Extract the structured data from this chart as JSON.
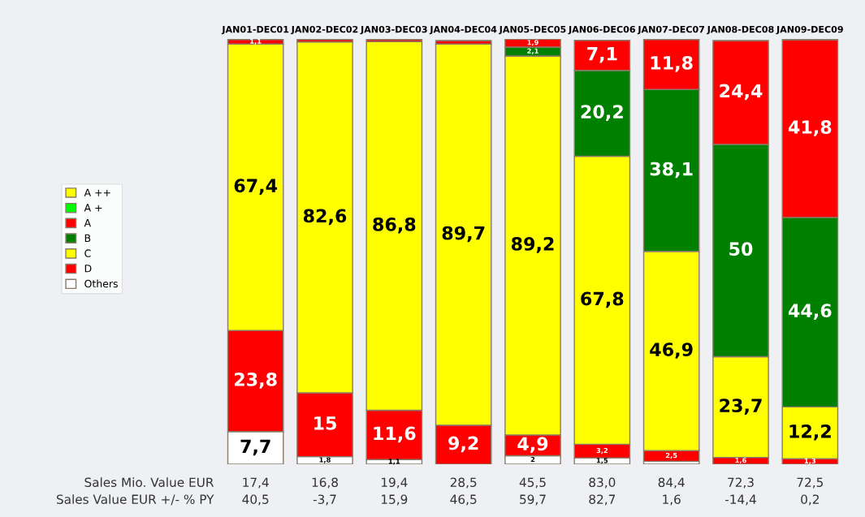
{
  "chart_data": {
    "type": "bar",
    "stacked": true,
    "legend": "left",
    "grid": false,
    "tick_labels": "x",
    "categories": [
      "JAN01-DEC01",
      "JAN02-DEC02",
      "JAN03-DEC03",
      "JAN04-DEC04",
      "JAN05-DEC05",
      "JAN06-DEC06",
      "JAN07-DEC07",
      "JAN08-DEC08",
      "JAN09-DEC09"
    ],
    "series": [
      {
        "name": "Others",
        "color": "#ffffff",
        "values": [
          7.7,
          1.8,
          1.1,
          null,
          2,
          1.5,
          0.7,
          null,
          null
        ],
        "value_labels": [
          "7,7",
          "1,8",
          "1,1",
          null,
          "2",
          "1,5",
          null,
          null,
          null
        ]
      },
      {
        "name": "D",
        "color": "#ff0000",
        "values": [
          23.8,
          15,
          11.6,
          9.2,
          4.9,
          3.2,
          2.5,
          1.6,
          1.3
        ],
        "value_labels": [
          "23,8",
          "15",
          "11,6",
          "9,2",
          "4,9",
          "3,2",
          "2,5",
          "1,6",
          "1,3"
        ]
      },
      {
        "name": "C",
        "color": "#ffff00",
        "values": [
          67.4,
          82.6,
          86.8,
          89.7,
          89.2,
          67.8,
          46.9,
          23.7,
          12.2
        ],
        "value_labels": [
          "67,4",
          "82,6",
          "86,8",
          "89,7",
          "89,2",
          "67,8",
          "46,9",
          "23,7",
          "12,2"
        ]
      },
      {
        "name": "B",
        "color": "#008000",
        "values": [
          null,
          null,
          null,
          null,
          2.1,
          20.2,
          38.1,
          50,
          44.6
        ],
        "value_labels": [
          null,
          null,
          null,
          null,
          "2,1",
          "20,2",
          "38,1",
          "50",
          "44,6"
        ]
      },
      {
        "name": "A",
        "color": "#ff0000",
        "values": [
          1.1,
          0.6,
          0.5,
          0.8,
          1.9,
          7.1,
          11.8,
          24.4,
          41.8
        ],
        "value_labels": [
          "1,1",
          null,
          null,
          null,
          "1,9",
          "7,1",
          "11,8",
          "24,4",
          "41,8"
        ]
      },
      {
        "name": "A +",
        "color": "#00ff00",
        "values": [
          null,
          null,
          null,
          null,
          null,
          null,
          null,
          null,
          null
        ]
      },
      {
        "name": "A ++",
        "color": "#ffff00",
        "values": [
          null,
          null,
          null,
          null,
          null,
          null,
          null,
          null,
          null
        ]
      }
    ],
    "annotations": [
      "Sales Mio. Value EUR",
      "17,4",
      "16,8",
      "19,4",
      "28,5",
      "45,5",
      "83,0",
      "84,4",
      "72,3",
      "72,5",
      "Sales Value EUR +/- % PY",
      "40,5",
      "-3,7",
      "15,9",
      "46,5",
      "59,7",
      "82,7",
      "1,6",
      "-14,4",
      "0,2"
    ]
  }
}
